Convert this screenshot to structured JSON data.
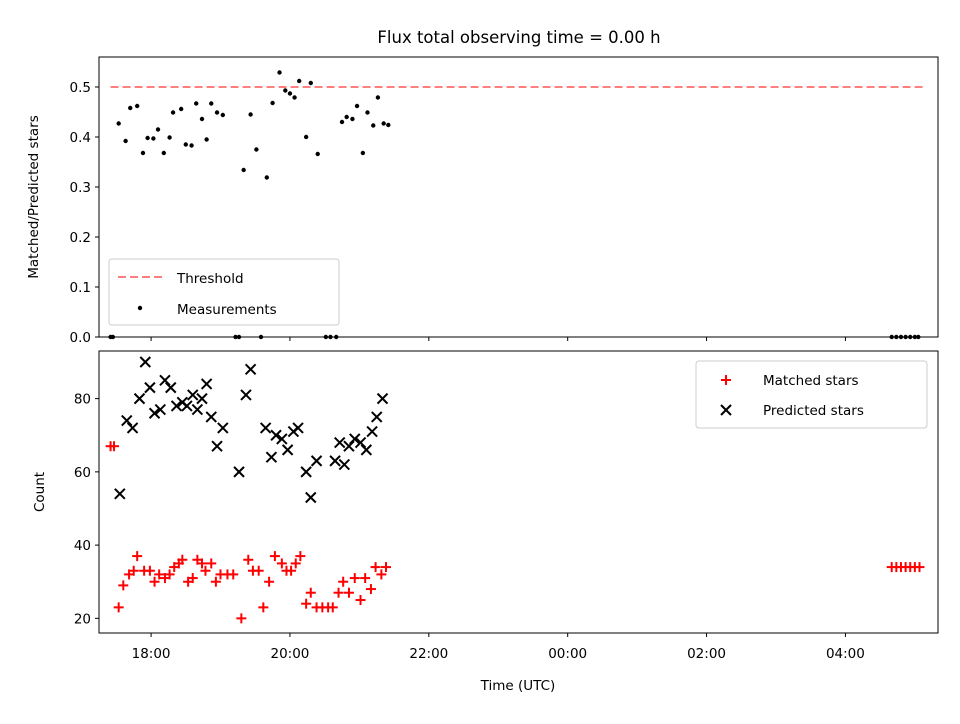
{
  "title": "Flux total observing time = 0.00 h",
  "colors": {
    "threshold": "#ff7f7f",
    "measurements": "#000000",
    "matched": "#ff0000",
    "predicted": "#000000"
  },
  "chart_data": [
    {
      "type": "scatter",
      "title": "Flux total observing time = 0.00 h",
      "ylabel": "Matched/Predicted stars",
      "xlim": [
        "17:15",
        "05:20"
      ],
      "ylim": [
        0,
        0.56
      ],
      "yticks": [
        "0.0",
        "0.1",
        "0.2",
        "0.3",
        "0.4",
        "0.5"
      ],
      "ytick_values": [
        0,
        0.1,
        0.2,
        0.3,
        0.4,
        0.5
      ],
      "legend_position": "lower-left",
      "threshold": {
        "name": "Threshold",
        "value": 0.5,
        "x_range": [
          "17:25",
          "05:10"
        ],
        "style": "dashed"
      },
      "series": [
        {
          "name": "Measurements",
          "style": "dot",
          "points": [
            [
              "17:25",
              0.0
            ],
            [
              "17:27",
              0.0
            ],
            [
              "17:32",
              0.427
            ],
            [
              "17:38",
              0.392
            ],
            [
              "17:42",
              0.458
            ],
            [
              "17:48",
              0.462
            ],
            [
              "17:53",
              0.368
            ],
            [
              "17:57",
              0.398
            ],
            [
              "18:02",
              0.397
            ],
            [
              "18:06",
              0.415
            ],
            [
              "18:11",
              0.368
            ],
            [
              "18:16",
              0.399
            ],
            [
              "18:19",
              0.449
            ],
            [
              "18:26",
              0.456
            ],
            [
              "18:30",
              0.385
            ],
            [
              "18:35",
              0.383
            ],
            [
              "18:39",
              0.467
            ],
            [
              "18:44",
              0.436
            ],
            [
              "18:48",
              0.395
            ],
            [
              "18:52",
              0.467
            ],
            [
              "18:57",
              0.449
            ],
            [
              "19:02",
              0.444
            ],
            [
              "19:13",
              0.0
            ],
            [
              "19:16",
              0.0
            ],
            [
              "19:20",
              0.334
            ],
            [
              "19:26",
              0.445
            ],
            [
              "19:31",
              0.375
            ],
            [
              "19:35",
              0.0
            ],
            [
              "19:40",
              0.319
            ],
            [
              "19:45",
              0.468
            ],
            [
              "19:51",
              0.529
            ],
            [
              "19:56",
              0.493
            ],
            [
              "20:00",
              0.487
            ],
            [
              "20:04",
              0.479
            ],
            [
              "20:08",
              0.512
            ],
            [
              "20:14",
              0.4
            ],
            [
              "20:18",
              0.508
            ],
            [
              "20:24",
              0.366
            ],
            [
              "20:31",
              0.0
            ],
            [
              "20:35",
              0.0
            ],
            [
              "20:40",
              0.0
            ],
            [
              "20:45",
              0.43
            ],
            [
              "20:49",
              0.44
            ],
            [
              "20:54",
              0.436
            ],
            [
              "20:58",
              0.462
            ],
            [
              "21:03",
              0.368
            ],
            [
              "21:07",
              0.449
            ],
            [
              "21:12",
              0.423
            ],
            [
              "21:16",
              0.479
            ],
            [
              "21:21",
              0.427
            ],
            [
              "21:25",
              0.424
            ],
            [
              "04:40",
              0.0
            ],
            [
              "04:44",
              0.0
            ],
            [
              "04:48",
              0.0
            ],
            [
              "04:52",
              0.0
            ],
            [
              "04:56",
              0.0
            ],
            [
              "05:00",
              0.0
            ],
            [
              "05:03",
              0.0
            ]
          ]
        }
      ]
    },
    {
      "type": "scatter",
      "xlabel": "Time (UTC)",
      "ylabel": "Count",
      "xlim": [
        "17:15",
        "05:20"
      ],
      "ylim": [
        16,
        93
      ],
      "xticks": [
        "18:00",
        "20:00",
        "22:00",
        "00:00",
        "02:00",
        "04:00"
      ],
      "yticks": [
        "20",
        "40",
        "60",
        "80"
      ],
      "ytick_values": [
        20,
        40,
        60,
        80
      ],
      "legend_position": "top-right",
      "series": [
        {
          "name": "Matched stars",
          "marker": "plus",
          "points": [
            [
              "17:25",
              67
            ],
            [
              "17:28",
              67
            ],
            [
              "17:32",
              23
            ],
            [
              "17:36",
              29
            ],
            [
              "17:41",
              32
            ],
            [
              "17:45",
              33
            ],
            [
              "17:48",
              37
            ],
            [
              "17:54",
              33
            ],
            [
              "17:59",
              33
            ],
            [
              "18:03",
              30
            ],
            [
              "18:07",
              32
            ],
            [
              "18:12",
              31
            ],
            [
              "18:16",
              32
            ],
            [
              "18:20",
              34
            ],
            [
              "18:24",
              35
            ],
            [
              "18:27",
              36
            ],
            [
              "18:32",
              30
            ],
            [
              "18:36",
              31
            ],
            [
              "18:40",
              36
            ],
            [
              "18:44",
              35
            ],
            [
              "18:47",
              33
            ],
            [
              "18:52",
              35
            ],
            [
              "18:56",
              30
            ],
            [
              "19:00",
              32
            ],
            [
              "19:06",
              32
            ],
            [
              "19:11",
              32
            ],
            [
              "19:18",
              20
            ],
            [
              "19:24",
              36
            ],
            [
              "19:28",
              33
            ],
            [
              "19:33",
              33
            ],
            [
              "19:37",
              23
            ],
            [
              "19:42",
              30
            ],
            [
              "19:47",
              37
            ],
            [
              "19:53",
              35
            ],
            [
              "19:57",
              33
            ],
            [
              "20:01",
              33
            ],
            [
              "20:05",
              35
            ],
            [
              "20:09",
              37
            ],
            [
              "20:14",
              24
            ],
            [
              "20:18",
              27
            ],
            [
              "20:23",
              23
            ],
            [
              "20:28",
              23
            ],
            [
              "20:33",
              23
            ],
            [
              "20:37",
              23
            ],
            [
              "20:42",
              27
            ],
            [
              "20:46",
              30
            ],
            [
              "20:51",
              27
            ],
            [
              "20:56",
              31
            ],
            [
              "21:01",
              25
            ],
            [
              "21:05",
              31
            ],
            [
              "21:10",
              28
            ],
            [
              "21:14",
              34
            ],
            [
              "21:19",
              32
            ],
            [
              "21:23",
              34
            ],
            [
              "04:40",
              34
            ],
            [
              "04:44",
              34
            ],
            [
              "04:48",
              34
            ],
            [
              "04:52",
              34
            ],
            [
              "04:56",
              34
            ],
            [
              "05:00",
              34
            ],
            [
              "05:04",
              34
            ]
          ]
        },
        {
          "name": "Predicted stars",
          "marker": "x",
          "points": [
            [
              "17:33",
              54
            ],
            [
              "17:39",
              74
            ],
            [
              "17:44",
              72
            ],
            [
              "17:50",
              80
            ],
            [
              "17:55",
              90
            ],
            [
              "17:59",
              83
            ],
            [
              "18:03",
              76
            ],
            [
              "18:08",
              77
            ],
            [
              "18:12",
              85
            ],
            [
              "18:17",
              83
            ],
            [
              "18:22",
              78
            ],
            [
              "18:27",
              79
            ],
            [
              "18:31",
              78
            ],
            [
              "18:36",
              81
            ],
            [
              "18:40",
              77
            ],
            [
              "18:44",
              80
            ],
            [
              "18:48",
              84
            ],
            [
              "18:52",
              75
            ],
            [
              "18:57",
              67
            ],
            [
              "19:02",
              72
            ],
            [
              "19:16",
              60
            ],
            [
              "19:22",
              81
            ],
            [
              "19:26",
              88
            ],
            [
              "19:39",
              72
            ],
            [
              "19:44",
              64
            ],
            [
              "19:48",
              70
            ],
            [
              "19:53",
              69
            ],
            [
              "19:58",
              66
            ],
            [
              "20:03",
              71
            ],
            [
              "20:07",
              72
            ],
            [
              "20:14",
              60
            ],
            [
              "20:18",
              53
            ],
            [
              "20:23",
              63
            ],
            [
              "20:39",
              63
            ],
            [
              "20:43",
              68
            ],
            [
              "20:47",
              62
            ],
            [
              "20:51",
              67
            ],
            [
              "20:56",
              69
            ],
            [
              "21:01",
              68
            ],
            [
              "21:06",
              66
            ],
            [
              "21:11",
              71
            ],
            [
              "21:15",
              75
            ],
            [
              "21:20",
              80
            ]
          ]
        }
      ]
    }
  ]
}
